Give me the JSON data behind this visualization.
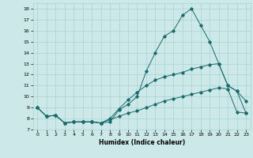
{
  "xlabel": "Humidex (Indice chaleur)",
  "xlim": [
    -0.5,
    23.5
  ],
  "ylim": [
    7,
    18.5
  ],
  "xticks": [
    0,
    1,
    2,
    3,
    4,
    5,
    6,
    7,
    8,
    9,
    10,
    11,
    12,
    13,
    14,
    15,
    16,
    17,
    18,
    19,
    20,
    21,
    22,
    23
  ],
  "yticks": [
    7,
    8,
    9,
    10,
    11,
    12,
    13,
    14,
    15,
    16,
    17,
    18
  ],
  "bg_color": "#cce8e8",
  "line_color": "#1a6b6b",
  "grid_color": "#aad0d0",
  "curve1_x": [
    0,
    1,
    2,
    3,
    4,
    5,
    6,
    7,
    8,
    9,
    10,
    11,
    12,
    13,
    14,
    15,
    16,
    17,
    18,
    19,
    20,
    21,
    22,
    23
  ],
  "curve1_y": [
    9.0,
    8.2,
    8.3,
    7.6,
    7.7,
    7.7,
    7.7,
    7.6,
    7.7,
    8.8,
    9.3,
    10.0,
    12.3,
    14.0,
    15.5,
    16.0,
    17.4,
    18.0,
    16.5,
    15.0,
    13.0,
    11.0,
    10.5,
    9.6
  ],
  "curve2_x": [
    0,
    1,
    2,
    3,
    4,
    5,
    6,
    7,
    8,
    9,
    10,
    11,
    12,
    13,
    14,
    15,
    16,
    17,
    18,
    19,
    20,
    21,
    22,
    23
  ],
  "curve2_y": [
    9.0,
    8.2,
    8.3,
    7.6,
    7.7,
    7.7,
    7.7,
    7.6,
    8.0,
    8.9,
    9.7,
    10.4,
    11.0,
    11.5,
    11.8,
    12.0,
    12.2,
    12.5,
    12.7,
    12.9,
    13.0,
    11.0,
    10.5,
    8.5
  ],
  "curve3_x": [
    0,
    1,
    2,
    3,
    4,
    5,
    6,
    7,
    8,
    9,
    10,
    11,
    12,
    13,
    14,
    15,
    16,
    17,
    18,
    19,
    20,
    21,
    22,
    23
  ],
  "curve3_y": [
    9.0,
    8.2,
    8.3,
    7.6,
    7.7,
    7.7,
    7.7,
    7.6,
    7.9,
    8.2,
    8.5,
    8.7,
    9.0,
    9.3,
    9.6,
    9.8,
    10.0,
    10.2,
    10.4,
    10.6,
    10.8,
    10.7,
    8.6,
    8.5
  ]
}
